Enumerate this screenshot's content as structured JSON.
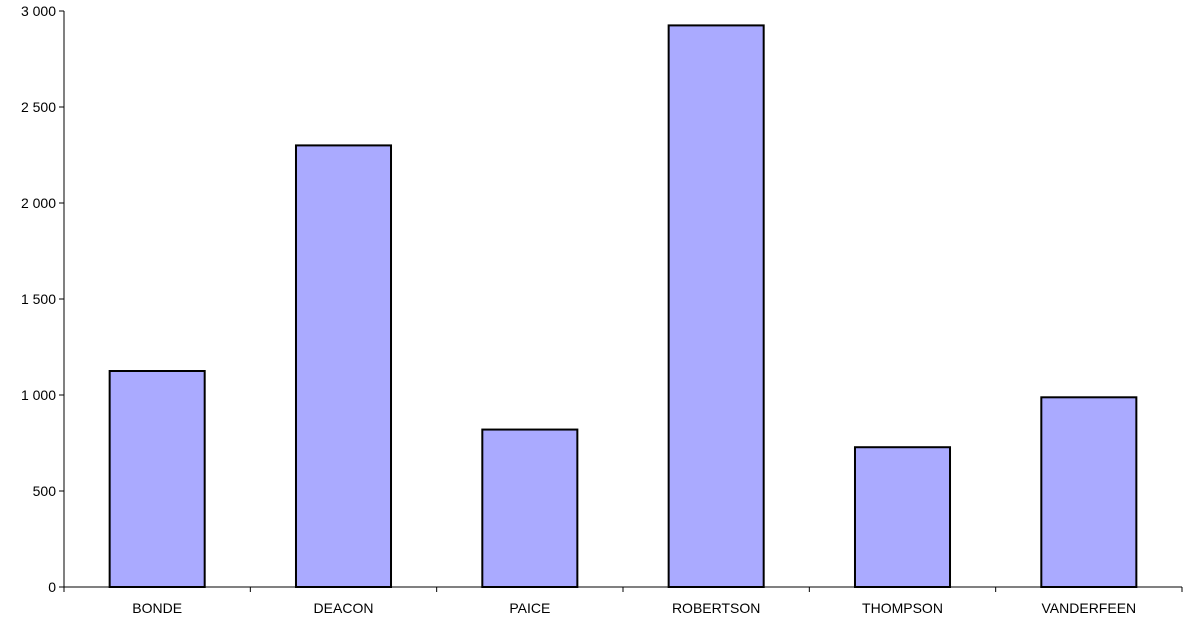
{
  "chart_data": {
    "type": "bar",
    "title": "",
    "xlabel": "",
    "ylabel": "",
    "categories": [
      "BONDE",
      "DEACON",
      "PAICE",
      "ROBERTSON",
      "THOMPSON",
      "VANDERFEEN"
    ],
    "values": [
      1125,
      2300,
      820,
      2925,
      728,
      988
    ],
    "ylim": [
      0,
      3000
    ],
    "yticks": [
      0,
      500,
      1000,
      1500,
      2000,
      2500,
      3000
    ],
    "ytick_labels": [
      "0",
      "500",
      "1 000",
      "1 500",
      "2 000",
      "2 500",
      "3 000"
    ],
    "grid": false,
    "legend": "none",
    "bar_color": "#aaaaff",
    "bar_edge_color": "#000000"
  }
}
